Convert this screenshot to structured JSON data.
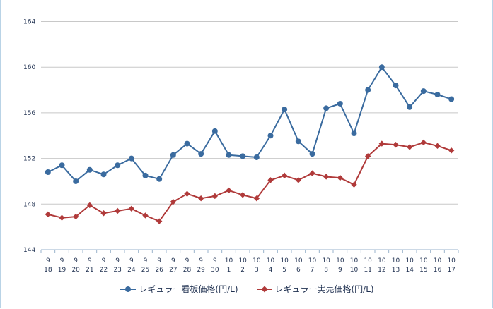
{
  "chart_data": {
    "type": "line",
    "title": "",
    "xlabel": "",
    "ylabel": "",
    "ylim": [
      144,
      165
    ],
    "yticks": [
      144,
      148,
      152,
      156,
      160,
      164
    ],
    "grid": true,
    "legend_position": "bottom",
    "categories": [
      {
        "month": "9",
        "day": "18"
      },
      {
        "month": "9",
        "day": "19"
      },
      {
        "month": "9",
        "day": "20"
      },
      {
        "month": "9",
        "day": "21"
      },
      {
        "month": "9",
        "day": "22"
      },
      {
        "month": "9",
        "day": "23"
      },
      {
        "month": "9",
        "day": "24"
      },
      {
        "month": "9",
        "day": "25"
      },
      {
        "month": "9",
        "day": "26"
      },
      {
        "month": "9",
        "day": "27"
      },
      {
        "month": "9",
        "day": "28"
      },
      {
        "month": "9",
        "day": "29"
      },
      {
        "month": "9",
        "day": "30"
      },
      {
        "month": "10",
        "day": "1"
      },
      {
        "month": "10",
        "day": "2"
      },
      {
        "month": "10",
        "day": "3"
      },
      {
        "month": "10",
        "day": "4"
      },
      {
        "month": "10",
        "day": "5"
      },
      {
        "month": "10",
        "day": "6"
      },
      {
        "month": "10",
        "day": "7"
      },
      {
        "month": "10",
        "day": "8"
      },
      {
        "month": "10",
        "day": "9"
      },
      {
        "month": "10",
        "day": "10"
      },
      {
        "month": "10",
        "day": "11"
      },
      {
        "month": "10",
        "day": "12"
      },
      {
        "month": "10",
        "day": "13"
      },
      {
        "month": "10",
        "day": "14"
      },
      {
        "month": "10",
        "day": "15"
      },
      {
        "month": "10",
        "day": "16"
      },
      {
        "month": "10",
        "day": "17"
      }
    ],
    "series": [
      {
        "name": "レギュラー看板価格(円/L)",
        "color": "#3a6b9f",
        "marker": "circle",
        "values": [
          150.8,
          151.4,
          150.0,
          151.0,
          150.6,
          151.4,
          152.0,
          150.5,
          150.2,
          152.3,
          153.3,
          152.4,
          154.4,
          152.3,
          152.2,
          152.1,
          154.0,
          156.3,
          153.5,
          152.4,
          156.4,
          156.8,
          154.2,
          158.0,
          160.0,
          158.4,
          156.5,
          157.9,
          157.6,
          157.2
        ]
      },
      {
        "name": "レギュラー実売価格(円/L)",
        "color": "#b03a3a",
        "marker": "diamond",
        "values": [
          147.1,
          146.8,
          146.9,
          147.9,
          147.2,
          147.4,
          147.6,
          147.0,
          146.5,
          148.2,
          148.9,
          148.5,
          148.7,
          149.2,
          148.8,
          148.5,
          150.1,
          150.5,
          150.1,
          150.7,
          150.4,
          150.3,
          149.7,
          152.2,
          153.3,
          153.2,
          153.0,
          153.4,
          153.1,
          152.7
        ]
      }
    ]
  }
}
